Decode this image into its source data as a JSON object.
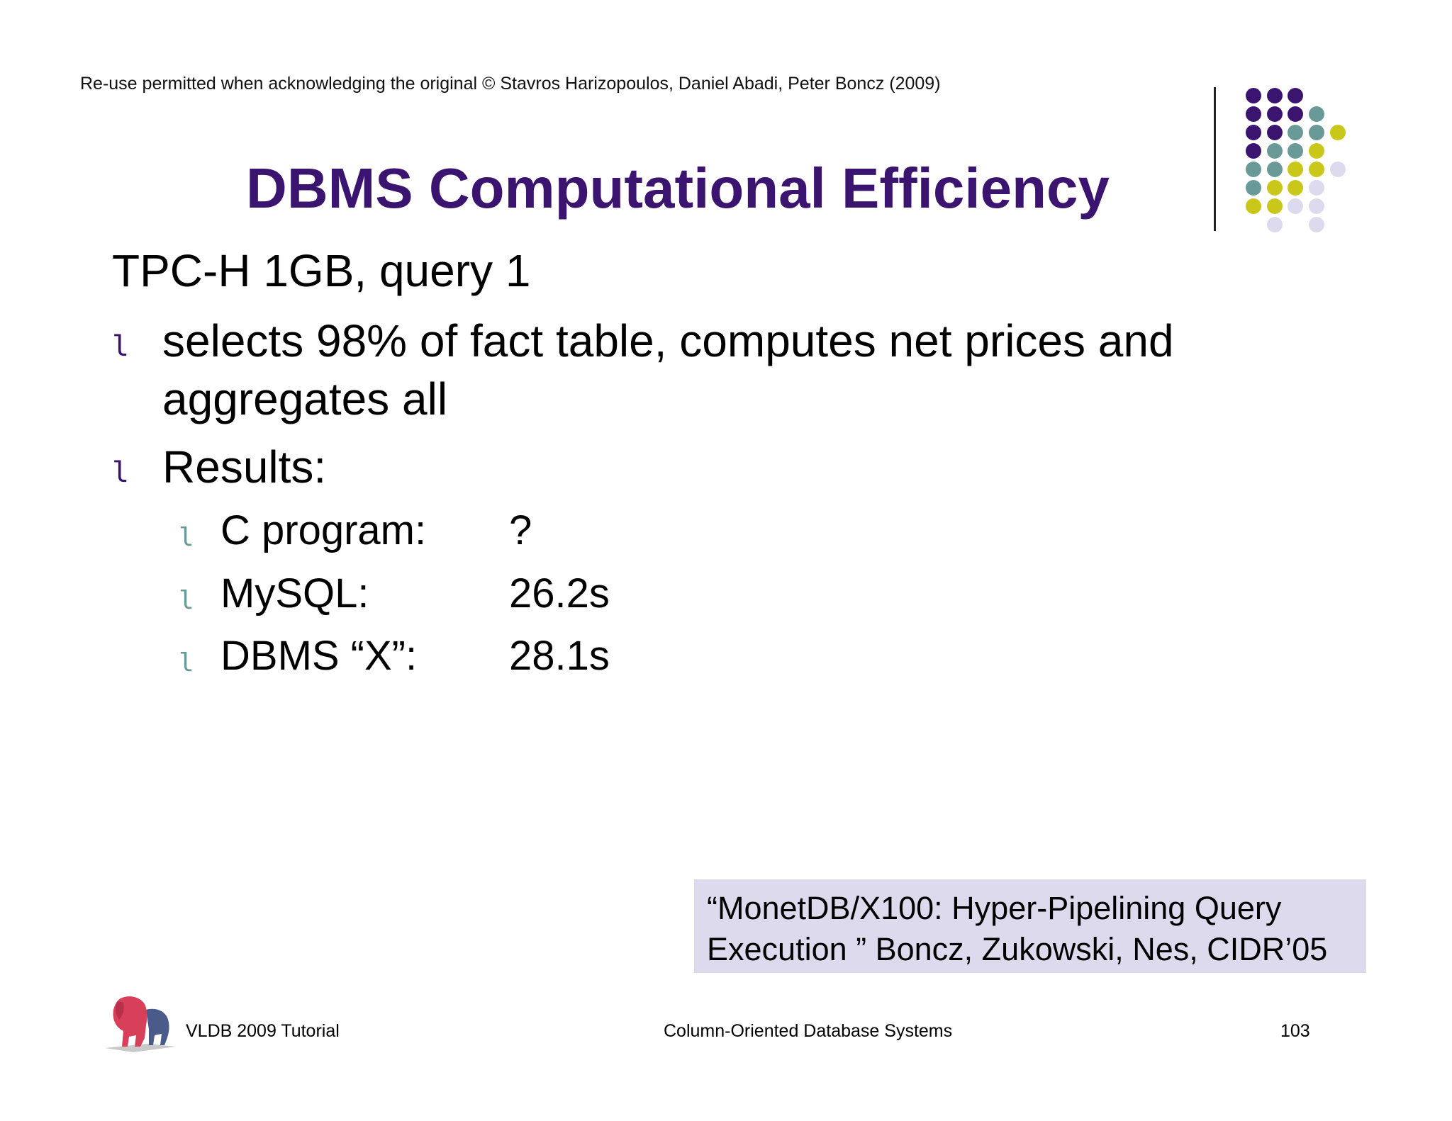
{
  "header": {
    "copyright": "Re-use permitted when acknowledging the original © Stavros Harizopoulos, Daniel Abadi, Peter Boncz (2009)"
  },
  "title": "DBMS Computational Efficiency",
  "subtitle": "TPC-H 1GB, query 1",
  "bullets": [
    {
      "marker": "l",
      "lines": [
        "selects 98% of fact table, computes net prices and",
        "aggregates all"
      ]
    },
    {
      "marker": "l",
      "lines": [
        "Results:"
      ]
    }
  ],
  "results": [
    {
      "marker": "l",
      "label": "C program:",
      "value": "?"
    },
    {
      "marker": "l",
      "label": "MySQL:",
      "value": "26.2s"
    },
    {
      "marker": "l",
      "label": "DBMS “X”:",
      "value": "28.1s"
    }
  ],
  "citation": {
    "line1": "“MonetDB/X100: Hyper-Pipelining Query",
    "line2": "Execution ” Boncz, Zukowski, Nes, CIDR’05"
  },
  "footer": {
    "left": "VLDB 2009 Tutorial",
    "center": "Column-Oriented Database Systems",
    "page_number": "103"
  },
  "colors": {
    "title": "#3b1470",
    "dot_purple": "#3b1470",
    "dot_teal": "#6a9a98",
    "dot_yellow": "#c9c81a",
    "dot_lavender": "#dcdaec",
    "citation_bg": "#dcdaec"
  },
  "icons": [
    "dot-grid-icon",
    "lion-logo-icon"
  ]
}
